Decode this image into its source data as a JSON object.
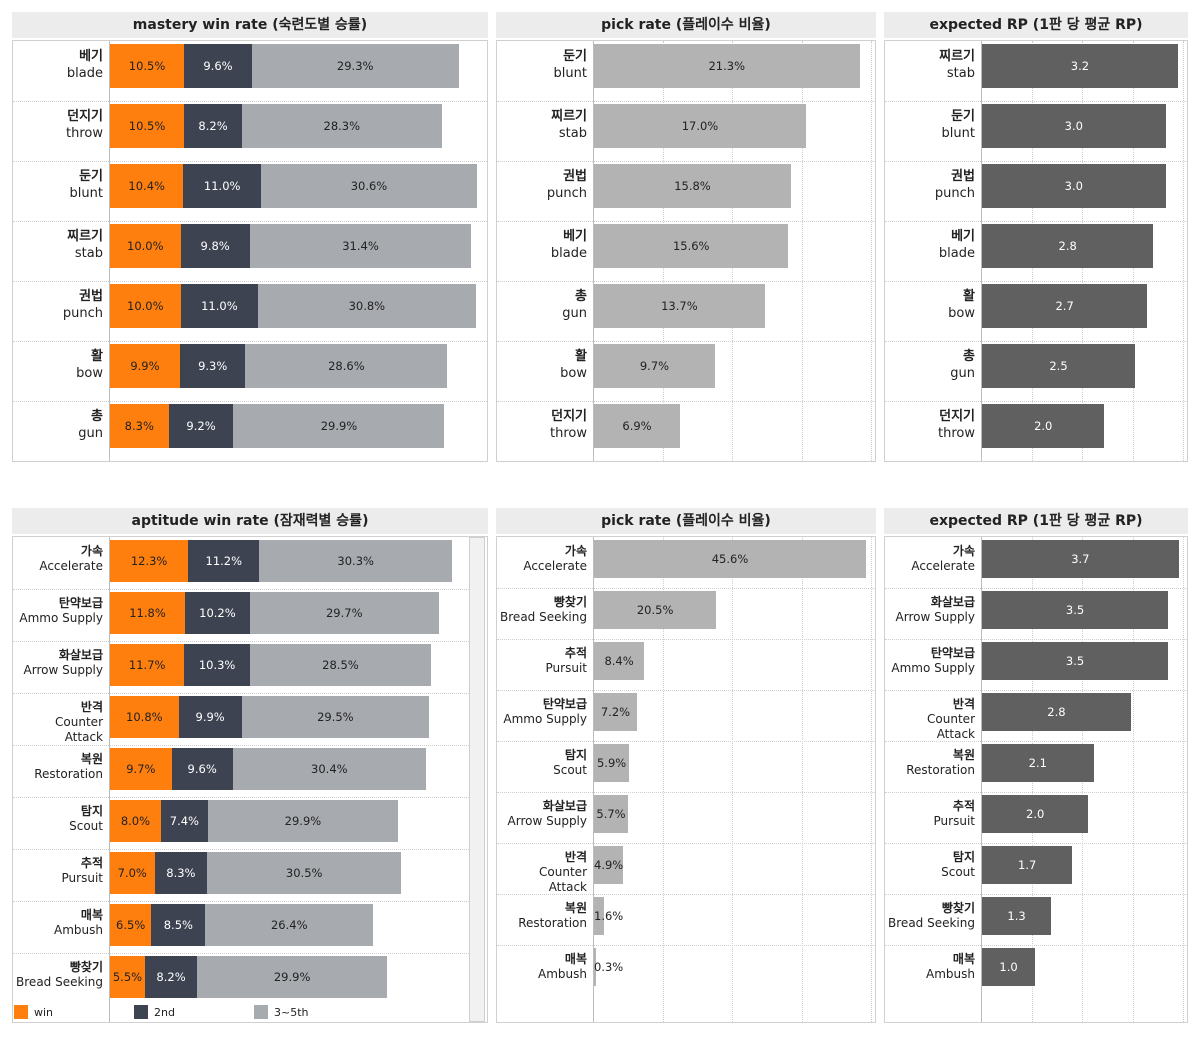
{
  "colors": {
    "win": "#ff7f0e",
    "second": "#3e4352",
    "third": "#a7aaae",
    "pick": "#b3b3b3",
    "rp": "#606060"
  },
  "legend": [
    {
      "label": "win",
      "color": "#ff7f0e"
    },
    {
      "label": "2nd",
      "color": "#3e4352"
    },
    {
      "label": "3~5th",
      "color": "#a7aaae"
    }
  ],
  "chart_data": [
    {
      "id": "mastery-win",
      "type": "bar",
      "stacked": true,
      "title": "mastery win rate (숙련도별 승률)",
      "categories": [
        {
          "ko": "베기",
          "en": "blade"
        },
        {
          "ko": "던지기",
          "en": "throw"
        },
        {
          "ko": "둔기",
          "en": "blunt"
        },
        {
          "ko": "찌르기",
          "en": "stab"
        },
        {
          "ko": "권법",
          "en": "punch"
        },
        {
          "ko": "활",
          "en": "bow"
        },
        {
          "ko": "총",
          "en": "gun"
        }
      ],
      "series": [
        {
          "name": "win",
          "values": [
            10.5,
            10.5,
            10.4,
            10.0,
            10.0,
            9.9,
            8.3
          ]
        },
        {
          "name": "2nd",
          "values": [
            9.6,
            8.2,
            11.0,
            9.8,
            11.0,
            9.3,
            9.2
          ]
        },
        {
          "name": "3~5th",
          "values": [
            29.3,
            28.3,
            30.6,
            31.4,
            30.8,
            28.6,
            29.9
          ]
        }
      ],
      "labels": [
        [
          "10.5%",
          "9.6%",
          "29.3%"
        ],
        [
          "10.5%",
          "8.2%",
          "28.3%"
        ],
        [
          "10.4%",
          "11.0%",
          "30.6%"
        ],
        [
          "10.0%",
          "9.8%",
          "31.4%"
        ],
        [
          "10.0%",
          "11.0%",
          "30.8%"
        ],
        [
          "9.9%",
          "9.3%",
          "28.6%"
        ],
        [
          "8.3%",
          "9.2%",
          "29.9%"
        ]
      ],
      "xlim": [
        0,
        53
      ]
    },
    {
      "id": "mastery-pick",
      "type": "bar",
      "title": "pick rate (플레이수 비율)",
      "categories": [
        {
          "ko": "둔기",
          "en": "blunt"
        },
        {
          "ko": "찌르기",
          "en": "stab"
        },
        {
          "ko": "권법",
          "en": "punch"
        },
        {
          "ko": "베기",
          "en": "blade"
        },
        {
          "ko": "총",
          "en": "gun"
        },
        {
          "ko": "활",
          "en": "bow"
        },
        {
          "ko": "던지기",
          "en": "throw"
        }
      ],
      "values": [
        21.3,
        17.0,
        15.8,
        15.6,
        13.7,
        9.7,
        6.9
      ],
      "labels": [
        "21.3%",
        "17.0%",
        "15.8%",
        "15.6%",
        "13.7%",
        "9.7%",
        "6.9%"
      ],
      "xlim": [
        0,
        22.3
      ]
    },
    {
      "id": "mastery-rp",
      "type": "bar",
      "title": "expected RP (1판 당 평균 RP)",
      "categories": [
        {
          "ko": "찌르기",
          "en": "stab"
        },
        {
          "ko": "둔기",
          "en": "blunt"
        },
        {
          "ko": "권법",
          "en": "punch"
        },
        {
          "ko": "베기",
          "en": "blade"
        },
        {
          "ko": "활",
          "en": "bow"
        },
        {
          "ko": "총",
          "en": "gun"
        },
        {
          "ko": "던지기",
          "en": "throw"
        }
      ],
      "values": [
        3.2,
        3.0,
        3.0,
        2.8,
        2.7,
        2.5,
        2.0
      ],
      "labels": [
        "3.2",
        "3.0",
        "3.0",
        "2.8",
        "2.7",
        "2.5",
        "2.0"
      ],
      "xlim": [
        0,
        3.3
      ]
    },
    {
      "id": "aptitude-win",
      "type": "bar",
      "stacked": true,
      "title": "aptitude win rate (잠재력별 승률)",
      "categories": [
        {
          "ko": "가속",
          "en": "Accelerate"
        },
        {
          "ko": "탄약보급",
          "en": "Ammo Supply"
        },
        {
          "ko": "화살보급",
          "en": "Arrow Supply"
        },
        {
          "ko": "반격",
          "en": "Counter Attack"
        },
        {
          "ko": "복원",
          "en": "Restoration"
        },
        {
          "ko": "탐지",
          "en": "Scout"
        },
        {
          "ko": "추적",
          "en": "Pursuit"
        },
        {
          "ko": "매복",
          "en": "Ambush"
        },
        {
          "ko": "빵찾기",
          "en": "Bread Seeking"
        }
      ],
      "series": [
        {
          "name": "win",
          "values": [
            12.3,
            11.8,
            11.7,
            10.8,
            9.7,
            8.0,
            7.0,
            6.5,
            5.5
          ]
        },
        {
          "name": "2nd",
          "values": [
            11.2,
            10.2,
            10.3,
            9.9,
            9.6,
            7.4,
            8.3,
            8.5,
            8.2
          ]
        },
        {
          "name": "3~5th",
          "values": [
            30.3,
            29.7,
            28.5,
            29.5,
            30.4,
            29.9,
            30.5,
            26.4,
            29.9
          ]
        }
      ],
      "labels": [
        [
          "12.3%",
          "11.2%",
          "30.3%"
        ],
        [
          "11.8%",
          "10.2%",
          "29.7%"
        ],
        [
          "11.7%",
          "10.3%",
          "28.5%"
        ],
        [
          "10.8%",
          "9.9%",
          "29.5%"
        ],
        [
          "9.7%",
          "9.6%",
          "30.4%"
        ],
        [
          "8.0%",
          "7.4%",
          "29.9%"
        ],
        [
          "7.0%",
          "8.3%",
          "30.5%"
        ],
        [
          "6.5%",
          "8.5%",
          "26.4%"
        ],
        [
          "5.5%",
          "8.2%",
          "29.9%"
        ]
      ],
      "xlim": [
        0,
        56
      ]
    },
    {
      "id": "aptitude-pick",
      "type": "bar",
      "title": "pick rate (플레이수 비율)",
      "categories": [
        {
          "ko": "가속",
          "en": "Accelerate"
        },
        {
          "ko": "빵찾기",
          "en": "Bread Seeking"
        },
        {
          "ko": "추적",
          "en": "Pursuit"
        },
        {
          "ko": "탄약보급",
          "en": "Ammo Supply"
        },
        {
          "ko": "탐지",
          "en": "Scout"
        },
        {
          "ko": "화살보급",
          "en": "Arrow Supply"
        },
        {
          "ko": "반격",
          "en": "Counter Attack"
        },
        {
          "ko": "복원",
          "en": "Restoration"
        },
        {
          "ko": "매복",
          "en": "Ambush"
        }
      ],
      "values": [
        45.6,
        20.5,
        8.4,
        7.2,
        5.9,
        5.7,
        4.9,
        1.6,
        0.3
      ],
      "labels": [
        "45.6%",
        "20.5%",
        "8.4%",
        "7.2%",
        "5.9%",
        "5.7%",
        "4.9%",
        "1.6%",
        "0.3%"
      ],
      "xlim": [
        0,
        46.6
      ]
    },
    {
      "id": "aptitude-rp",
      "type": "bar",
      "title": "expected RP (1판 당 평균 RP)",
      "categories": [
        {
          "ko": "가속",
          "en": "Accelerate"
        },
        {
          "ko": "화살보급",
          "en": "Arrow Supply"
        },
        {
          "ko": "탄약보급",
          "en": "Ammo Supply"
        },
        {
          "ko": "반격",
          "en": "Counter Attack"
        },
        {
          "ko": "복원",
          "en": "Restoration"
        },
        {
          "ko": "추적",
          "en": "Pursuit"
        },
        {
          "ko": "탐지",
          "en": "Scout"
        },
        {
          "ko": "빵찾기",
          "en": "Bread Seeking"
        },
        {
          "ko": "매복",
          "en": "Ambush"
        }
      ],
      "values": [
        3.7,
        3.5,
        3.5,
        2.8,
        2.1,
        2.0,
        1.7,
        1.3,
        1.0
      ],
      "labels": [
        "3.7",
        "3.5",
        "3.5",
        "2.8",
        "2.1",
        "2.0",
        "1.7",
        "1.3",
        "1.0"
      ],
      "xlim": [
        0,
        3.8
      ]
    }
  ]
}
